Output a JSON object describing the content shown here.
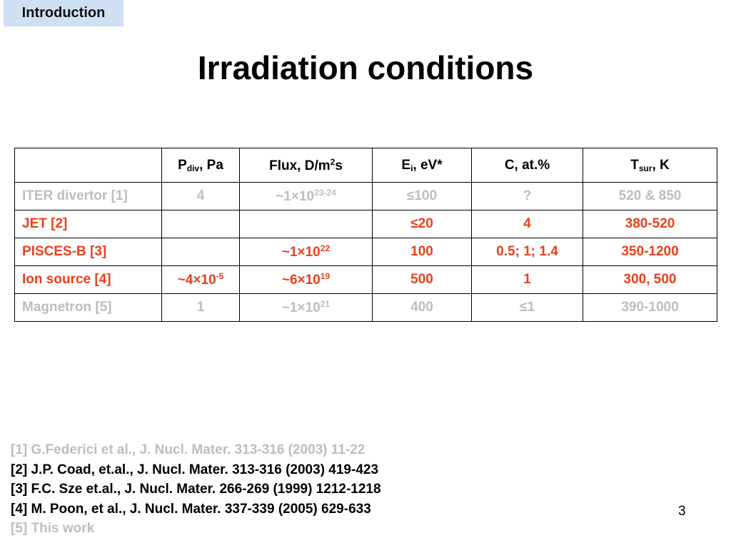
{
  "tab": "Introduction",
  "title": "Irradiation conditions",
  "table": {
    "header": [
      null,
      [
        {
          "text": "P"
        },
        {
          "sub": "div"
        },
        {
          "text": ", Pa"
        }
      ],
      [
        {
          "text": "Flux, D/m"
        },
        {
          "sup": "2"
        },
        {
          "text": "s"
        }
      ],
      [
        {
          "text": "E"
        },
        {
          "sub": "i"
        },
        {
          "text": ", eV*"
        }
      ],
      [
        {
          "text": "C, at.%"
        }
      ],
      [
        {
          "text": "T"
        },
        {
          "sub": "sur"
        },
        {
          "text": ", K"
        }
      ]
    ],
    "rows": [
      [
        [
          {
            "text": "ITER divertor [1]"
          }
        ],
        [
          {
            "text": "4"
          }
        ],
        [
          {
            "text": "~1×10"
          },
          {
            "sup": "23-24"
          }
        ],
        [
          {
            "text": "≤100"
          }
        ],
        [
          {
            "text": "?"
          }
        ],
        [
          {
            "text": "520 & 850"
          }
        ]
      ],
      [
        [
          {
            "text": "JET [2]"
          }
        ],
        null,
        null,
        [
          {
            "text": "≤20"
          }
        ],
        [
          {
            "text": "4"
          }
        ],
        [
          {
            "text": "380-520"
          }
        ]
      ],
      [
        [
          {
            "text": "PISCES-B [3]"
          }
        ],
        null,
        [
          {
            "text": "~1×10"
          },
          {
            "sup": "22"
          }
        ],
        [
          {
            "text": "100"
          }
        ],
        [
          {
            "text": "0.5; 1; 1.4"
          }
        ],
        [
          {
            "text": "350-1200"
          }
        ]
      ],
      [
        [
          {
            "text": "Ion source [4]"
          }
        ],
        [
          {
            "text": "~4×10"
          },
          {
            "sup": "-5"
          }
        ],
        [
          {
            "text": "~6×10"
          },
          {
            "sup": "19"
          }
        ],
        [
          {
            "text": "500"
          }
        ],
        [
          {
            "text": "1"
          }
        ],
        [
          {
            "text": "300, 500"
          }
        ]
      ],
      [
        [
          {
            "text": "Magnetron [5]"
          }
        ],
        [
          {
            "text": "1"
          }
        ],
        [
          {
            "text": "~1×10"
          },
          {
            "sup": "21"
          }
        ],
        [
          {
            "text": "400"
          }
        ],
        [
          {
            "text": "≤1"
          }
        ],
        [
          {
            "text": "390-1000"
          }
        ]
      ]
    ]
  },
  "references": [
    "[1] G.Federici et al., J. Nucl. Mater. 313-316 (2003) 11-22",
    "[2] J.P. Coad, et.al., J. Nucl. Mater. 313-316 (2003) 419-423",
    "[3] F.C. Sze et.al., J. Nucl. Mater. 266-269 (1999) 1212-1218",
    "[4] M. Poon, et al., J. Nucl. Mater. 337-339 (2005) 629-633",
    "[5] This work"
  ],
  "page_number": "3"
}
